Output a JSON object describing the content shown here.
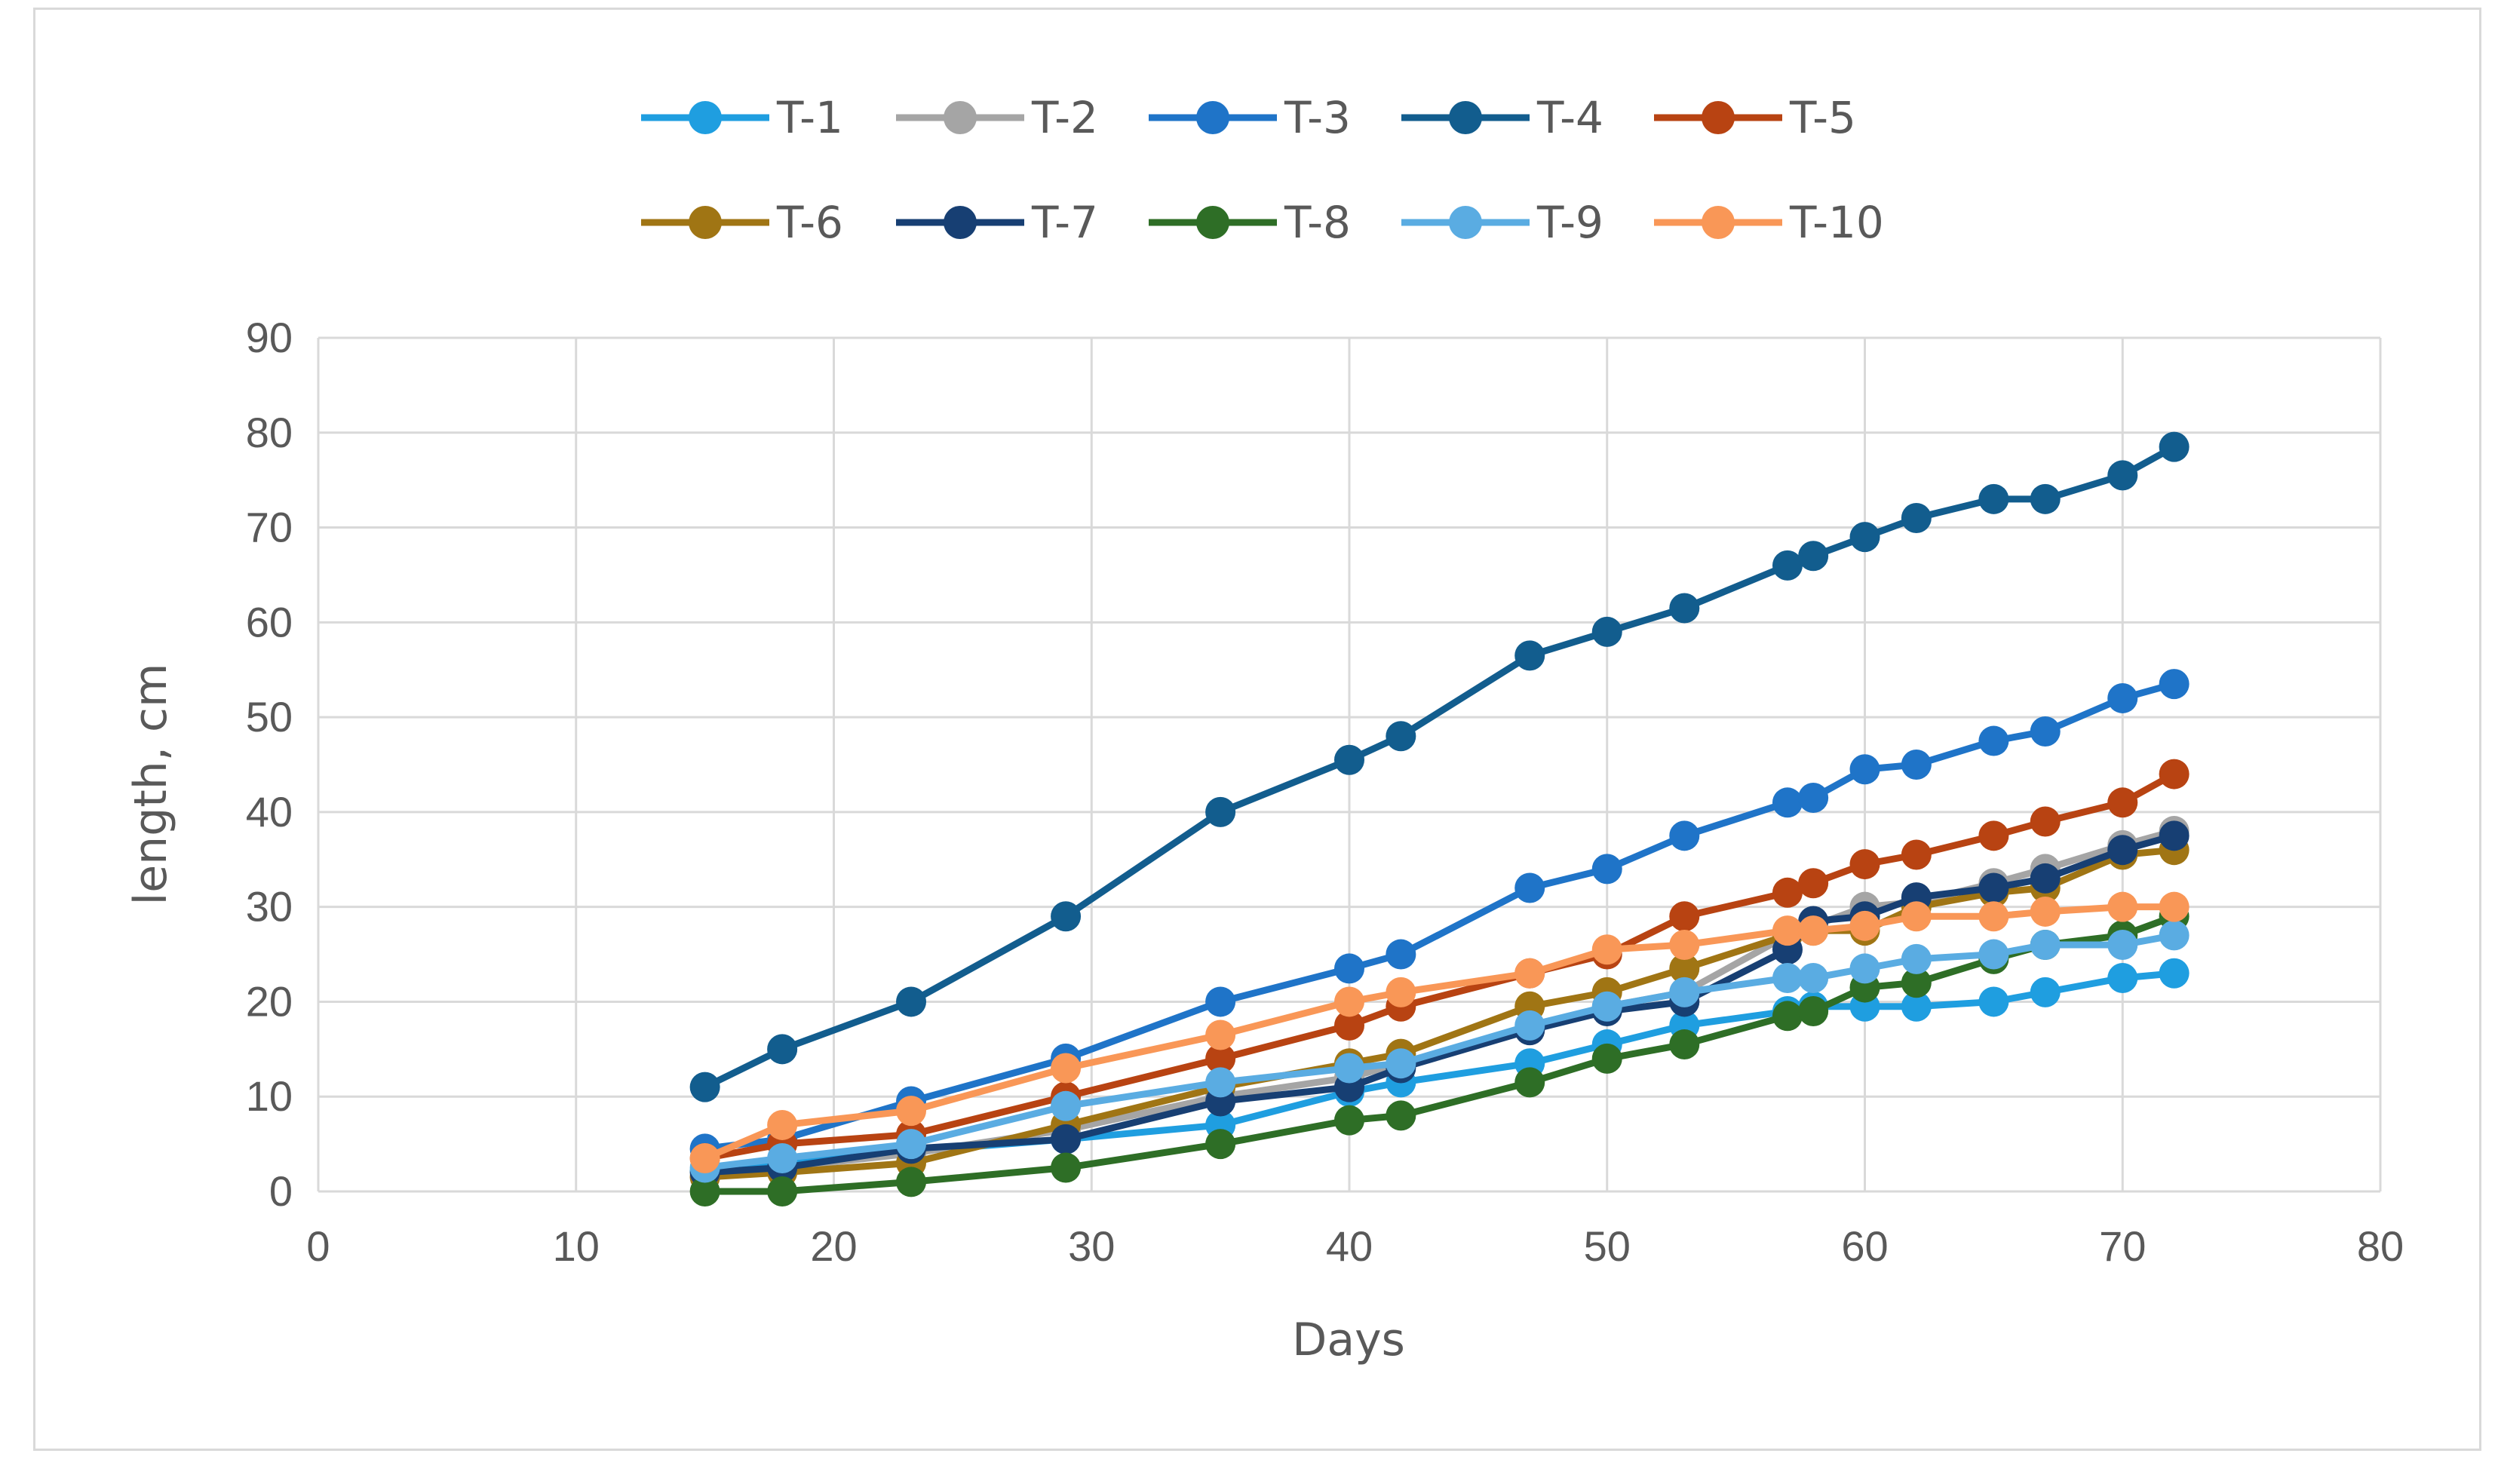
{
  "chart_data": {
    "type": "line",
    "title": "",
    "xlabel": "Days",
    "ylabel": "length, cm",
    "xlim": [
      0,
      80
    ],
    "ylim": [
      0,
      90
    ],
    "xticks": [
      0,
      10,
      20,
      30,
      40,
      50,
      60,
      70,
      80
    ],
    "yticks": [
      0,
      10,
      20,
      30,
      40,
      50,
      60,
      70,
      80,
      90
    ],
    "grid": true,
    "legend_position": "top",
    "x": [
      15,
      18,
      23,
      29,
      35,
      40,
      42,
      47,
      50,
      53,
      57,
      58,
      60,
      62,
      65,
      67,
      70,
      72
    ],
    "series": [
      {
        "name": "T-1",
        "color": "#1f9ee0",
        "values": [
          2.2,
          3.0,
          4.2,
          5.5,
          7.0,
          10.5,
          11.5,
          13.5,
          15.5,
          17.5,
          19.0,
          19.5,
          19.5,
          19.5,
          20.0,
          21.0,
          22.5,
          23.0
        ]
      },
      {
        "name": "T-2",
        "color": "#a5a5a5",
        "values": [
          1.5,
          2.5,
          4.0,
          6.5,
          10.0,
          12.0,
          13.5,
          17.0,
          19.5,
          21.0,
          27.0,
          28.0,
          30.0,
          30.5,
          32.5,
          34.0,
          36.5,
          38.0
        ]
      },
      {
        "name": "T-3",
        "color": "#1f74c8",
        "values": [
          4.5,
          5.5,
          9.5,
          14.0,
          20.0,
          23.5,
          25.0,
          32.0,
          34.0,
          37.5,
          41.0,
          41.5,
          44.5,
          45.0,
          47.5,
          48.5,
          52.0,
          53.5
        ]
      },
      {
        "name": "T-4",
        "color": "#125d8e",
        "values": [
          11.0,
          15.0,
          20.0,
          29.0,
          40.0,
          45.5,
          48.0,
          56.5,
          59.0,
          61.5,
          66.0,
          67.0,
          69.0,
          71.0,
          73.0,
          73.0,
          75.5,
          78.5
        ]
      },
      {
        "name": "T-5",
        "color": "#b84312",
        "values": [
          3.5,
          5.0,
          6.0,
          10.0,
          14.0,
          17.5,
          19.5,
          23.0,
          25.0,
          29.0,
          31.5,
          32.5,
          34.5,
          35.5,
          37.5,
          39.0,
          41.0,
          44.0
        ]
      },
      {
        "name": "T-6",
        "color": "#a07514",
        "values": [
          1.5,
          2.0,
          3.0,
          7.0,
          11.0,
          13.5,
          14.5,
          19.5,
          21.0,
          23.5,
          27.0,
          27.5,
          27.5,
          30.0,
          31.5,
          32.0,
          35.5,
          36.0
        ]
      },
      {
        "name": "T-7",
        "color": "#173f73",
        "values": [
          2.0,
          2.5,
          4.5,
          5.5,
          9.5,
          11.0,
          13.0,
          17.0,
          19.0,
          20.0,
          25.5,
          28.5,
          29.0,
          31.0,
          32.0,
          33.0,
          36.0,
          37.5
        ]
      },
      {
        "name": "T-8",
        "color": "#2e6e26",
        "values": [
          0.0,
          0.0,
          1.0,
          2.5,
          5.0,
          7.5,
          8.0,
          11.5,
          14.0,
          15.5,
          18.5,
          19.0,
          21.5,
          22.0,
          24.5,
          26.0,
          27.0,
          29.0
        ]
      },
      {
        "name": "T-9",
        "color": "#5aace2",
        "values": [
          2.5,
          3.5,
          5.0,
          9.0,
          11.5,
          13.0,
          13.5,
          17.5,
          19.5,
          21.0,
          22.5,
          22.5,
          23.5,
          24.5,
          25.0,
          26.0,
          26.0,
          27.0
        ]
      },
      {
        "name": "T-10",
        "color": "#f99757",
        "values": [
          3.5,
          7.0,
          8.5,
          13.0,
          16.5,
          20.0,
          21.0,
          23.0,
          25.5,
          26.0,
          27.5,
          27.5,
          28.0,
          29.0,
          29.0,
          29.5,
          30.0,
          30.0
        ]
      }
    ]
  }
}
